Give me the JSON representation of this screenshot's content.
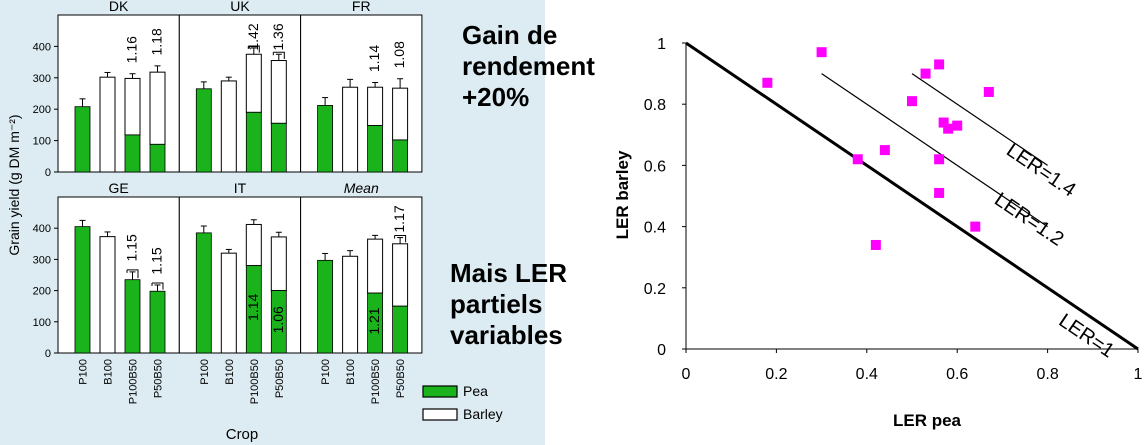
{
  "captions": {
    "gain": [
      "Gain de",
      "rendement",
      "+20%"
    ],
    "ler": [
      "Mais LER",
      "partiels",
      "variables"
    ]
  },
  "chart_data": [
    {
      "type": "bar",
      "stacked": true,
      "ylabel": "Grain yield (g DM m⁻²)",
      "ylim": [
        0,
        500
      ],
      "yticks": [
        0,
        100,
        200,
        300,
        400
      ],
      "xlabel": "Crop",
      "categories": [
        "P100",
        "B100",
        "P100B50",
        "P50B50"
      ],
      "legend": [
        {
          "name": "Pea",
          "color": "#1bb31b"
        },
        {
          "name": "Barley",
          "color": "#ffffff"
        }
      ],
      "panels": [
        {
          "title": "DK",
          "italic": false,
          "pea": [
            208,
            0,
            118,
            88
          ],
          "barley": [
            0,
            302,
            180,
            230
          ],
          "error": [
            25,
            15,
            15,
            20
          ],
          "ler": [
            "",
            "",
            "1.16",
            "1.18"
          ],
          "ler_pos": [
            "",
            "",
            "above",
            "above"
          ],
          "brackets": [
            false,
            false,
            false,
            false
          ]
        },
        {
          "title": "UK",
          "italic": false,
          "pea": [
            265,
            0,
            190,
            155
          ],
          "barley": [
            0,
            290,
            185,
            200
          ],
          "error": [
            22,
            12,
            20,
            20
          ],
          "ler": [
            "",
            "",
            "1.42",
            "1.36"
          ],
          "ler_pos": [
            "",
            "",
            "above",
            "above"
          ],
          "brackets": [
            false,
            false,
            true,
            true
          ]
        },
        {
          "title": "FR",
          "italic": false,
          "pea": [
            212,
            0,
            148,
            102
          ],
          "barley": [
            0,
            270,
            122,
            165
          ],
          "error": [
            25,
            25,
            15,
            30
          ],
          "ler": [
            "",
            "",
            "1.14",
            "1.08"
          ],
          "ler_pos": [
            "",
            "",
            "above",
            "above"
          ],
          "brackets": [
            false,
            false,
            false,
            false
          ]
        },
        {
          "title": "GE",
          "italic": false,
          "pea": [
            405,
            0,
            235,
            198
          ],
          "barley": [
            0,
            373,
            0,
            0
          ],
          "error": [
            20,
            15,
            25,
            20
          ],
          "ler": [
            "",
            "",
            "1.15",
            "1.15"
          ],
          "ler_pos": [
            "",
            "",
            "above",
            "above"
          ],
          "brackets": [
            false,
            false,
            true,
            true
          ]
        },
        {
          "title": "IT",
          "italic": false,
          "pea": [
            385,
            0,
            280,
            200
          ],
          "barley": [
            0,
            320,
            132,
            172
          ],
          "error": [
            22,
            12,
            15,
            15
          ],
          "ler": [
            "",
            "",
            "1.14",
            "1.06"
          ],
          "ler_pos": [
            "",
            "",
            "below",
            "below"
          ],
          "brackets": [
            false,
            false,
            false,
            false
          ]
        },
        {
          "title": "Mean",
          "italic": true,
          "pea": [
            297,
            0,
            192,
            150
          ],
          "barley": [
            0,
            310,
            173,
            200
          ],
          "error": [
            22,
            18,
            12,
            20
          ],
          "ler": [
            "",
            "",
            "1.21",
            "1.17"
          ],
          "ler_pos": [
            "",
            "",
            "below",
            "above"
          ],
          "brackets": [
            false,
            false,
            false,
            true
          ]
        }
      ]
    },
    {
      "type": "scatter",
      "xlabel": "LER pea",
      "ylabel": "LER barley",
      "xlim": [
        0,
        1
      ],
      "ylim": [
        0,
        1
      ],
      "xticks": [
        "0",
        "0.2",
        "0.4",
        "0.6",
        "0.8",
        "1"
      ],
      "yticks": [
        "0",
        "0.2",
        "0.4",
        "0.6",
        "0.8",
        "1"
      ],
      "marker_color": "#ff00ff",
      "points": [
        [
          0.18,
          0.87
        ],
        [
          0.3,
          0.97
        ],
        [
          0.38,
          0.62
        ],
        [
          0.42,
          0.34
        ],
        [
          0.44,
          0.65
        ],
        [
          0.5,
          0.81
        ],
        [
          0.53,
          0.9
        ],
        [
          0.56,
          0.93
        ],
        [
          0.56,
          0.62
        ],
        [
          0.56,
          0.51
        ],
        [
          0.57,
          0.74
        ],
        [
          0.58,
          0.72
        ],
        [
          0.6,
          0.73
        ],
        [
          0.64,
          0.4
        ],
        [
          0.67,
          0.84
        ]
      ],
      "lines": [
        {
          "label": "LER=1",
          "from": [
            0,
            1
          ],
          "to": [
            1,
            0
          ],
          "thick": true
        },
        {
          "label": "LER=1.2",
          "from": [
            0.3,
            0.9
          ],
          "to": [
            0.8,
            0.4
          ],
          "thick": false
        },
        {
          "label": "LER=1.4",
          "from": [
            0.5,
            0.9
          ],
          "to": [
            0.8,
            0.6
          ],
          "thick": false
        }
      ]
    }
  ]
}
